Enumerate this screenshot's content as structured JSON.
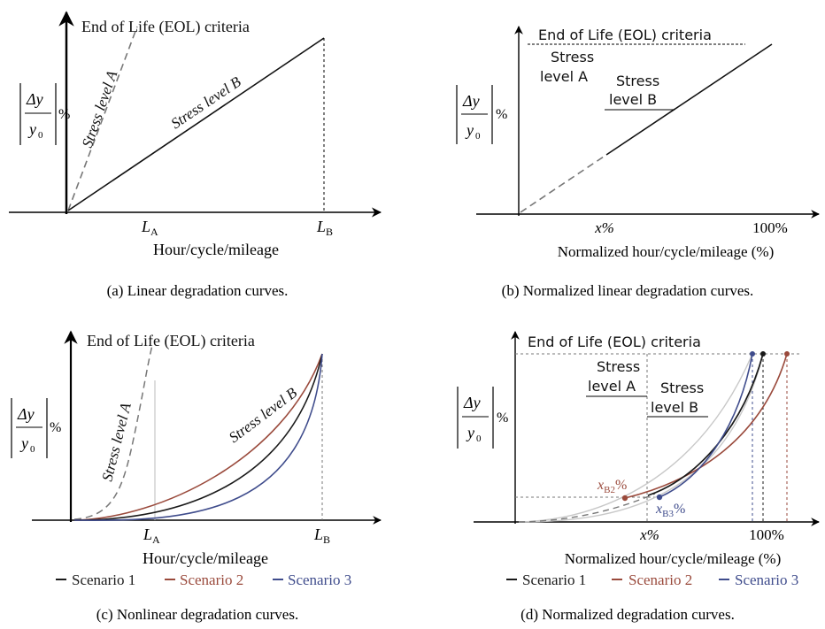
{
  "colors": {
    "scenario1": "#1a1a1a",
    "scenario2": "#9a4a3c",
    "scenario3": "#3f4c8c",
    "axis": "#000000",
    "guide": "#8a8a8a"
  },
  "common": {
    "eol_label": "End of Life (EOL) criteria",
    "ylabel_num": "Δy",
    "ylabel_den": "y",
    "ylabel_den_sub": "0",
    "ylabel_pct": "%",
    "xlabel_raw": "Hour/cycle/mileage",
    "xlabel_norm": "Normalized hour/cycle/mileage (%)",
    "x_percent": "x%",
    "hundred_percent": "100%",
    "tick_LA_main": "L",
    "tick_LA_sub": "A",
    "tick_LB_main": "L",
    "tick_LB_sub": "B",
    "stress_a": "Stress level A",
    "stress_b": "Stress level B",
    "stress_word": "Stress",
    "level_a": "level A",
    "level_b": "level B",
    "xb2_main": "x",
    "xb2_sub": "B2",
    "xb3_main": "x",
    "xb3_sub": "B3",
    "pct": "%"
  },
  "captions": {
    "a": "(a) Linear degradation curves.",
    "b": "(b) Normalized linear degradation curves.",
    "c": "(c) Nonlinear degradation curves.",
    "d": "(d) Normalized degradation curves."
  },
  "legend": [
    {
      "name": "Scenario 1",
      "color": "#1a1a1a"
    },
    {
      "name": "Scenario 2",
      "color": "#9a4a3c"
    },
    {
      "name": "Scenario 3",
      "color": "#3f4c8c"
    }
  ],
  "chart_data": [
    {
      "panel": "a",
      "type": "line",
      "xlabel": "Hour/cycle/mileage",
      "x_ticks": [
        "L_A",
        "L_B"
      ],
      "series": [
        {
          "name": "Stress level A",
          "style": "dashed",
          "x": [
            0,
            1
          ],
          "y": [
            0,
            1
          ]
        },
        {
          "name": "Stress level B",
          "style": "solid",
          "x": [
            0,
            1
          ],
          "y": [
            0,
            1
          ]
        }
      ],
      "annotations": [
        "End of Life (EOL) criteria"
      ]
    },
    {
      "panel": "b",
      "type": "line",
      "xlabel": "Normalized hour/cycle/mileage (%)",
      "x_ticks": [
        "x%",
        "100%"
      ],
      "series": [
        {
          "name": "Stress level A",
          "style": "dashed",
          "x": [
            0,
            30
          ],
          "y": [
            0,
            30
          ]
        },
        {
          "name": "Stress level B",
          "style": "solid",
          "x": [
            30,
            100
          ],
          "y": [
            30,
            100
          ]
        }
      ],
      "annotations": [
        "End of Life (EOL) criteria"
      ]
    },
    {
      "panel": "c",
      "type": "line",
      "xlabel": "Hour/cycle/mileage",
      "x_ticks": [
        "L_A",
        "L_B"
      ],
      "series": [
        {
          "name": "Stress level A",
          "style": "dashed",
          "x": [
            0,
            0.1,
            0.2,
            0.3,
            0.4,
            0.5,
            0.6,
            0.7,
            0.8,
            0.9,
            1.0
          ],
          "y": [
            0,
            0.0,
            0.02,
            0.05,
            0.1,
            0.17,
            0.27,
            0.4,
            0.57,
            0.77,
            1.0
          ]
        },
        {
          "name": "Scenario 1",
          "x": [
            0,
            0.1,
            0.2,
            0.3,
            0.4,
            0.5,
            0.6,
            0.7,
            0.8,
            0.9,
            1.0
          ],
          "y": [
            0,
            0.0,
            0.03,
            0.07,
            0.13,
            0.21,
            0.31,
            0.43,
            0.58,
            0.77,
            1.0
          ]
        },
        {
          "name": "Scenario 2",
          "x": [
            0,
            0.1,
            0.2,
            0.3,
            0.4,
            0.5,
            0.6,
            0.7,
            0.8,
            0.9,
            1.0
          ],
          "y": [
            0,
            0.01,
            0.04,
            0.1,
            0.17,
            0.26,
            0.37,
            0.5,
            0.65,
            0.82,
            1.0
          ]
        },
        {
          "name": "Scenario 3",
          "x": [
            0,
            0.1,
            0.2,
            0.3,
            0.4,
            0.5,
            0.6,
            0.7,
            0.8,
            0.9,
            1.0
          ],
          "y": [
            0,
            0.0,
            0.02,
            0.05,
            0.1,
            0.17,
            0.26,
            0.39,
            0.55,
            0.75,
            1.0
          ]
        }
      ],
      "annotations": [
        "End of Life (EOL) criteria"
      ]
    },
    {
      "panel": "d",
      "type": "line",
      "xlabel": "Normalized hour/cycle/mileage (%)",
      "x_ticks": [
        "x%",
        "100%"
      ],
      "series": [
        {
          "name": "Scenario 1",
          "x": [
            0,
            10,
            20,
            30,
            40,
            50,
            60,
            70,
            80,
            90,
            100
          ],
          "y": [
            0,
            0.0,
            0.03,
            0.07,
            0.13,
            0.21,
            0.31,
            0.43,
            0.58,
            0.77,
            1.0
          ]
        },
        {
          "name": "Scenario 2",
          "x": [
            0,
            10,
            20,
            30,
            40,
            50,
            60,
            70,
            80,
            90,
            100
          ],
          "y": [
            0,
            0.01,
            0.04,
            0.1,
            0.17,
            0.26,
            0.37,
            0.5,
            0.65,
            0.82,
            1.0
          ]
        },
        {
          "name": "Scenario 3",
          "x": [
            0,
            10,
            20,
            30,
            40,
            50,
            60,
            70,
            80,
            90,
            100
          ],
          "y": [
            0,
            0.0,
            0.02,
            0.05,
            0.1,
            0.17,
            0.26,
            0.39,
            0.55,
            0.75,
            1.0
          ]
        }
      ],
      "points": [
        "x_B2%",
        "x_B3%"
      ],
      "annotations": [
        "End of Life (EOL) criteria"
      ]
    }
  ]
}
